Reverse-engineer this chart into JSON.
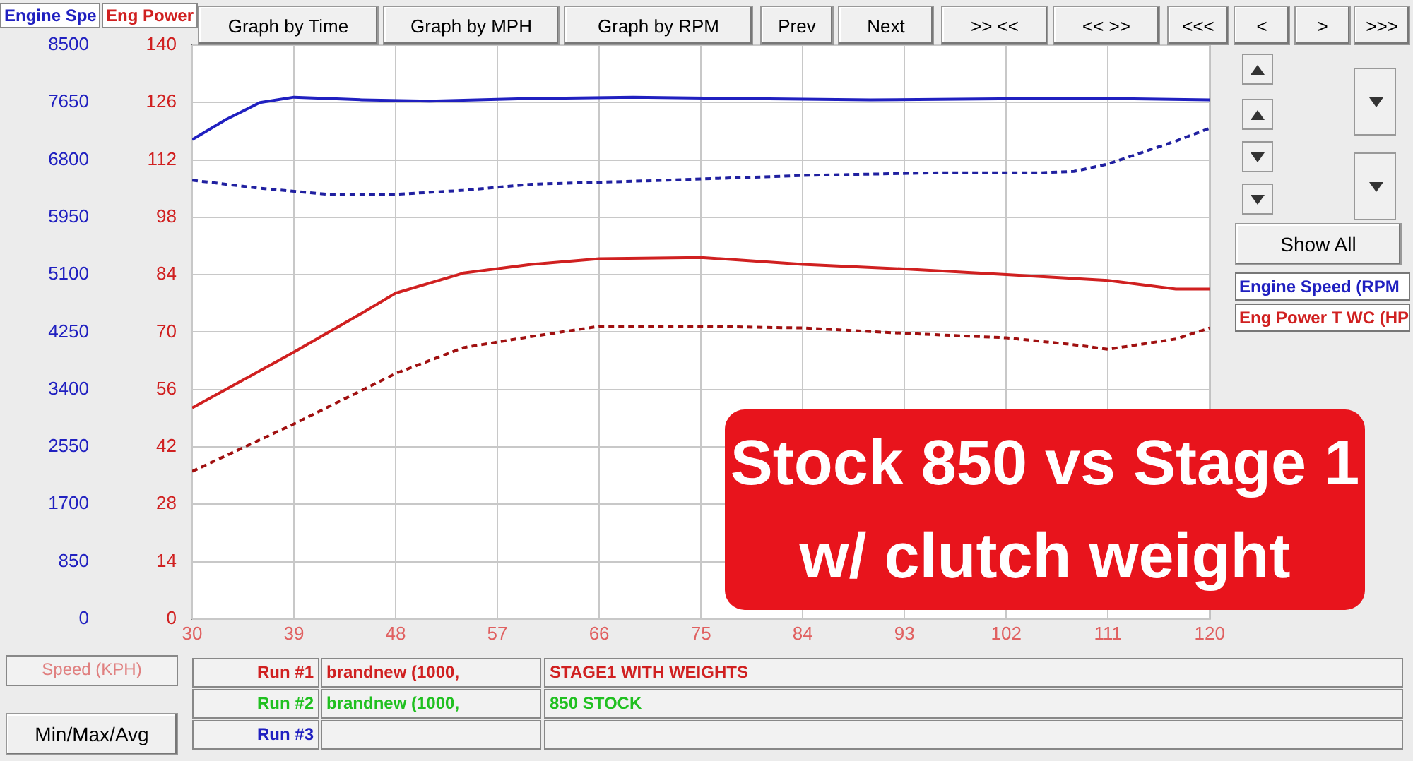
{
  "chart_data": {
    "type": "line",
    "title": "Stock 850 vs Stage 1 w/ clutch weight",
    "xlabel": "Speed (KPH)",
    "ylabel": "Engine Spe",
    "y2label": "Eng Power",
    "xlim": [
      30,
      120
    ],
    "xticks": [
      30,
      39,
      48,
      57,
      66,
      75,
      84,
      93,
      102,
      111,
      120
    ],
    "ylim": [
      0,
      8500
    ],
    "yticks": [
      0,
      850,
      1700,
      2550,
      3400,
      4250,
      5100,
      5950,
      6800,
      7650,
      8500
    ],
    "y2lim": [
      0,
      140
    ],
    "y2ticks": [
      0,
      14,
      28,
      42,
      56,
      70,
      84,
      98,
      112,
      126,
      140
    ],
    "grid": true,
    "legend": "right",
    "marker": "none",
    "series": [
      {
        "name": "Engine Speed (RPM",
        "color": "#2020c0",
        "line_style": "solid",
        "x": [
          30,
          33,
          36,
          39,
          45,
          51,
          60,
          69,
          78,
          90,
          105,
          111,
          120
        ],
        "values": [
          7100,
          7400,
          7650,
          7730,
          7690,
          7670,
          7710,
          7730,
          7710,
          7690,
          7710,
          7710,
          7690
        ]
      },
      {
        "color": "#2020a0",
        "line_style": "dashed",
        "x": [
          30,
          36,
          42,
          48,
          54,
          60,
          72,
          84,
          96,
          105,
          108,
          111,
          114,
          117,
          120
        ],
        "values": [
          6500,
          6380,
          6290,
          6290,
          6350,
          6440,
          6500,
          6570,
          6610,
          6610,
          6630,
          6740,
          6910,
          7080,
          7270
        ]
      },
      {
        "name": "Eng Power T WC (HP",
        "axis": "y2",
        "color": "#d02020",
        "line_style": "solid",
        "x": [
          30,
          39,
          45,
          48,
          54,
          60,
          66,
          75,
          84,
          93,
          102,
          111,
          117,
          120
        ],
        "values": [
          51.5,
          65.1,
          74.6,
          79.5,
          84.4,
          86.5,
          87.9,
          88.2,
          86.5,
          85.4,
          84,
          82.6,
          80.5,
          80.5
        ]
      },
      {
        "axis": "y2",
        "color": "#a01010",
        "line_style": "dashed",
        "x": [
          30,
          39,
          48,
          54,
          60,
          66,
          75,
          84,
          93,
          102,
          108,
          111,
          117,
          120
        ],
        "values": [
          36,
          47.6,
          59.9,
          66.2,
          68.9,
          71.4,
          71.4,
          71,
          69.7,
          68.6,
          66.9,
          65.8,
          68.3,
          71
        ]
      }
    ],
    "annotations": [
      "Graph by Time",
      "Graph by MPH",
      "Graph by RPM",
      "Prev",
      "Next",
      ">> <<",
      "<< >>",
      "<<<",
      "<",
      ">",
      ">>>",
      "Show All",
      "Run #1",
      "brandnew (1000,",
      "STAGE1 WITH WEIGHTS",
      "Run #2",
      "brandnew (1000,",
      "850 STOCK",
      "Run #3",
      "Min/Max/Avg"
    ]
  }
}
